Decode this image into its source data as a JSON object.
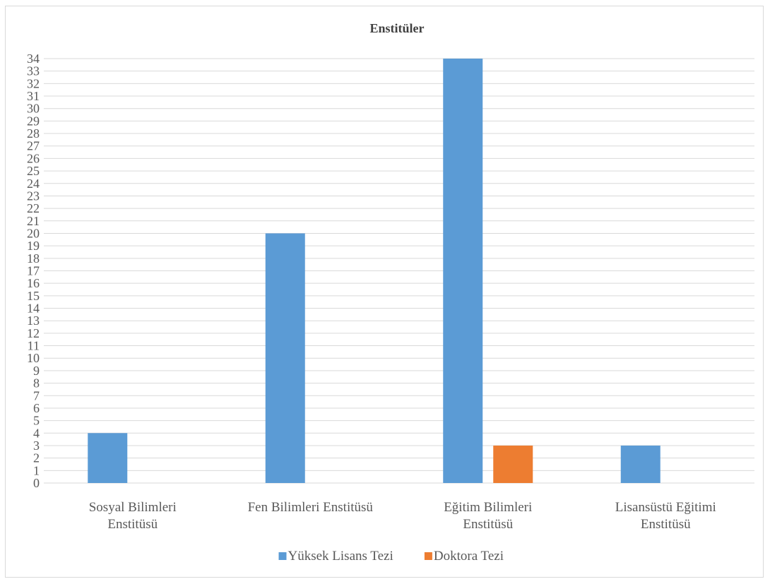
{
  "chart_data": {
    "type": "bar",
    "title": "Enstitüler",
    "xlabel": "",
    "ylabel": "",
    "ylim": [
      0,
      34
    ],
    "ytick_step": 1,
    "grid": true,
    "legend_position": "bottom",
    "categories": [
      [
        "Sosyal Bilimleri",
        "Enstitüsü"
      ],
      [
        "Fen Bilimleri Enstitüsü"
      ],
      [
        "Eğitim Bilimleri",
        "Enstitüsü"
      ],
      [
        "Lisansüstü Eğitimi",
        "Enstitüsü"
      ]
    ],
    "series": [
      {
        "name": "Yüksek Lisans Tezi",
        "color": "#5b9bd5",
        "values": [
          4,
          20,
          34,
          3
        ]
      },
      {
        "name": "Doktora Tezi",
        "color": "#ed7d31",
        "values": [
          0,
          0,
          3,
          0
        ]
      }
    ]
  }
}
